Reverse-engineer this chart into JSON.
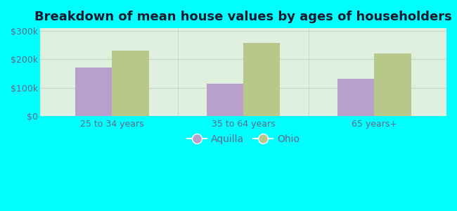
{
  "title": "Breakdown of mean house values by ages of householders",
  "categories": [
    "25 to 34 years",
    "35 to 64 years",
    "65 years+"
  ],
  "aquilla_values": [
    170000,
    115000,
    132000
  ],
  "ohio_values": [
    232000,
    258000,
    220000
  ],
  "aquilla_color": "#b89fcc",
  "ohio_color": "#b8c88a",
  "ylim": [
    0,
    310000
  ],
  "yticks": [
    0,
    100000,
    200000,
    300000
  ],
  "ytick_labels": [
    "$0",
    "$100k",
    "$200k",
    "$300k"
  ],
  "background_color": "#00ffff",
  "plot_bg_top": "#e8f5e8",
  "plot_bg_bottom": "#d0ebd0",
  "legend_labels": [
    "Aquilla",
    "Ohio"
  ],
  "title_fontsize": 13,
  "tick_fontsize": 9,
  "legend_fontsize": 10,
  "bar_width": 0.28,
  "title_color": "#1a1a2e",
  "tick_color": "#666688",
  "grid_color": "#c0d8c0",
  "divider_color": "#aaaaaa"
}
